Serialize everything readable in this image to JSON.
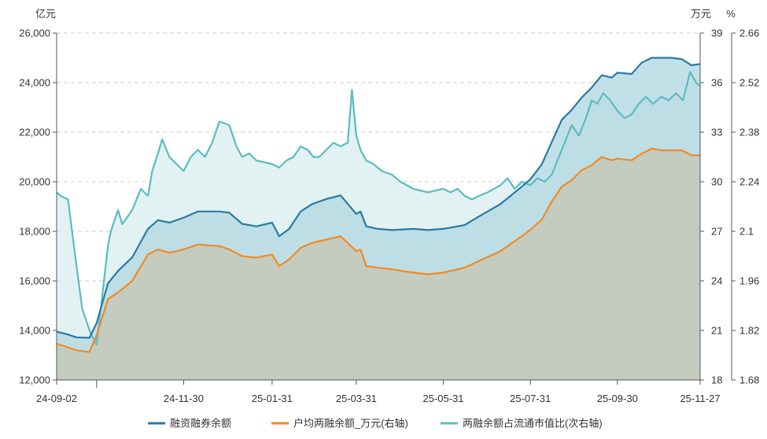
{
  "chart_data": {
    "type": "area",
    "title": "",
    "units": {
      "left": "亿元",
      "right1": "万元",
      "right2": "%"
    },
    "axes": {
      "left": {
        "min": 12000,
        "max": 26000,
        "ticks": [
          "12,000",
          "14,000",
          "16,000",
          "18,000",
          "20,000",
          "22,000",
          "24,000",
          "26,000"
        ]
      },
      "right1": {
        "min": 18,
        "max": 39,
        "ticks": [
          "18",
          "21",
          "24",
          "27",
          "30",
          "33",
          "36",
          "39"
        ]
      },
      "right2": {
        "min": 1.68,
        "max": 2.66,
        "ticks": [
          "1.68",
          "1.82",
          "1.96",
          "2.1",
          "2.24",
          "2.38",
          "2.52",
          "2.66"
        ]
      }
    },
    "x_range": [
      "2024-09-02",
      "2025-11-27"
    ],
    "x_ticks": [
      "24-09-02",
      "24-11-30",
      "25-01-31",
      "25-03-31",
      "25-05-31",
      "25-07-31",
      "25-09-30",
      "25-11-27"
    ],
    "x_tick_dates": [
      "2024-09-02",
      "2024-11-30",
      "2025-01-31",
      "2025-03-31",
      "2025-05-31",
      "2025-07-31",
      "2025-09-30",
      "2025-11-27"
    ],
    "minor_tick_dates": [
      "2024-09-30"
    ],
    "grid": true,
    "legend_position": "bottom",
    "series": [
      {
        "name": "融资融券余额",
        "axis": "left",
        "color": "#2a7aa6",
        "fill": "#b7dae3",
        "points": [
          [
            "2024-09-02",
            13950
          ],
          [
            "2024-09-09",
            13850
          ],
          [
            "2024-09-16",
            13720
          ],
          [
            "2024-09-25",
            13700
          ],
          [
            "2024-09-30",
            14300
          ],
          [
            "2024-10-08",
            15900
          ],
          [
            "2024-10-15",
            16400
          ],
          [
            "2024-10-25",
            16950
          ],
          [
            "2024-11-05",
            18100
          ],
          [
            "2024-11-12",
            18450
          ],
          [
            "2024-11-20",
            18350
          ],
          [
            "2024-11-30",
            18550
          ],
          [
            "2024-12-10",
            18800
          ],
          [
            "2024-12-25",
            18800
          ],
          [
            "2025-01-01",
            18750
          ],
          [
            "2025-01-10",
            18300
          ],
          [
            "2025-01-20",
            18200
          ],
          [
            "2025-01-31",
            18350
          ],
          [
            "2025-02-05",
            17800
          ],
          [
            "2025-02-12",
            18100
          ],
          [
            "2025-02-20",
            18800
          ],
          [
            "2025-02-28",
            19100
          ],
          [
            "2025-03-10",
            19300
          ],
          [
            "2025-03-20",
            19450
          ],
          [
            "2025-03-31",
            18700
          ],
          [
            "2025-04-03",
            18800
          ],
          [
            "2025-04-07",
            18200
          ],
          [
            "2025-04-15",
            18100
          ],
          [
            "2025-04-25",
            18050
          ],
          [
            "2025-05-10",
            18100
          ],
          [
            "2025-05-20",
            18050
          ],
          [
            "2025-05-31",
            18100
          ],
          [
            "2025-06-15",
            18250
          ],
          [
            "2025-06-25",
            18600
          ],
          [
            "2025-07-10",
            19100
          ],
          [
            "2025-07-25",
            19800
          ],
          [
            "2025-07-31",
            20100
          ],
          [
            "2025-08-08",
            20700
          ],
          [
            "2025-08-15",
            21600
          ],
          [
            "2025-08-22",
            22500
          ],
          [
            "2025-08-29",
            22900
          ],
          [
            "2025-09-05",
            23400
          ],
          [
            "2025-09-12",
            23800
          ],
          [
            "2025-09-19",
            24300
          ],
          [
            "2025-09-26",
            24200
          ],
          [
            "2025-09-30",
            24400
          ],
          [
            "2025-10-10",
            24350
          ],
          [
            "2025-10-17",
            24800
          ],
          [
            "2025-10-24",
            25000
          ],
          [
            "2025-10-31",
            25000
          ],
          [
            "2025-11-07",
            25000
          ],
          [
            "2025-11-14",
            24950
          ],
          [
            "2025-11-21",
            24700
          ],
          [
            "2025-11-27",
            24750
          ]
        ]
      },
      {
        "name": "户均两融余额_万元(右轴)",
        "axis": "right1",
        "color": "#f08a25",
        "fill": "#c5c9b9",
        "points": [
          [
            "2024-09-02",
            20.2
          ],
          [
            "2024-09-09",
            20.0
          ],
          [
            "2024-09-16",
            19.8
          ],
          [
            "2024-09-25",
            19.7
          ],
          [
            "2024-09-30",
            20.7
          ],
          [
            "2024-10-08",
            22.9
          ],
          [
            "2024-10-15",
            23.3
          ],
          [
            "2024-10-25",
            24.0
          ],
          [
            "2024-11-05",
            25.6
          ],
          [
            "2024-11-12",
            25.9
          ],
          [
            "2024-11-20",
            25.7
          ],
          [
            "2024-11-30",
            25.9
          ],
          [
            "2024-12-10",
            26.2
          ],
          [
            "2024-12-25",
            26.1
          ],
          [
            "2025-01-01",
            25.9
          ],
          [
            "2025-01-10",
            25.5
          ],
          [
            "2025-01-20",
            25.4
          ],
          [
            "2025-01-31",
            25.6
          ],
          [
            "2025-02-05",
            24.9
          ],
          [
            "2025-02-12",
            25.3
          ],
          [
            "2025-02-20",
            26.0
          ],
          [
            "2025-02-28",
            26.3
          ],
          [
            "2025-03-10",
            26.5
          ],
          [
            "2025-03-20",
            26.7
          ],
          [
            "2025-03-31",
            25.8
          ],
          [
            "2025-04-03",
            25.9
          ],
          [
            "2025-04-07",
            24.9
          ],
          [
            "2025-04-15",
            24.8
          ],
          [
            "2025-04-25",
            24.7
          ],
          [
            "2025-05-10",
            24.5
          ],
          [
            "2025-05-20",
            24.4
          ],
          [
            "2025-05-31",
            24.5
          ],
          [
            "2025-06-15",
            24.8
          ],
          [
            "2025-06-25",
            25.2
          ],
          [
            "2025-07-10",
            25.8
          ],
          [
            "2025-07-25",
            26.7
          ],
          [
            "2025-07-31",
            27.1
          ],
          [
            "2025-08-08",
            27.7
          ],
          [
            "2025-08-15",
            28.8
          ],
          [
            "2025-08-22",
            29.7
          ],
          [
            "2025-08-29",
            30.1
          ],
          [
            "2025-09-05",
            30.7
          ],
          [
            "2025-09-12",
            31.0
          ],
          [
            "2025-09-19",
            31.5
          ],
          [
            "2025-09-26",
            31.3
          ],
          [
            "2025-09-30",
            31.4
          ],
          [
            "2025-10-10",
            31.3
          ],
          [
            "2025-10-17",
            31.7
          ],
          [
            "2025-10-24",
            32.0
          ],
          [
            "2025-10-31",
            31.9
          ],
          [
            "2025-11-07",
            31.9
          ],
          [
            "2025-11-14",
            31.9
          ],
          [
            "2025-11-21",
            31.6
          ],
          [
            "2025-11-27",
            31.6
          ]
        ]
      },
      {
        "name": "两融余额占流通市值比(次右轴)",
        "axis": "right2",
        "color": "#5bbcc1",
        "fill": "#ddf0f0",
        "points": [
          [
            "2024-09-02",
            2.21
          ],
          [
            "2024-09-05",
            2.2
          ],
          [
            "2024-09-10",
            2.19
          ],
          [
            "2024-09-15",
            2.03
          ],
          [
            "2024-09-20",
            1.88
          ],
          [
            "2024-09-26",
            1.81
          ],
          [
            "2024-09-30",
            1.78
          ],
          [
            "2024-10-08",
            2.06
          ],
          [
            "2024-10-10",
            2.1
          ],
          [
            "2024-10-15",
            2.16
          ],
          [
            "2024-10-18",
            2.12
          ],
          [
            "2024-10-25",
            2.16
          ],
          [
            "2024-10-31",
            2.22
          ],
          [
            "2024-11-05",
            2.2
          ],
          [
            "2024-11-08",
            2.27
          ],
          [
            "2024-11-12",
            2.32
          ],
          [
            "2024-11-15",
            2.36
          ],
          [
            "2024-11-20",
            2.31
          ],
          [
            "2024-11-30",
            2.27
          ],
          [
            "2024-12-05",
            2.31
          ],
          [
            "2024-12-10",
            2.33
          ],
          [
            "2024-12-15",
            2.31
          ],
          [
            "2024-12-20",
            2.35
          ],
          [
            "2024-12-25",
            2.41
          ],
          [
            "2025-01-01",
            2.4
          ],
          [
            "2025-01-06",
            2.34
          ],
          [
            "2025-01-10",
            2.31
          ],
          [
            "2025-01-15",
            2.32
          ],
          [
            "2025-01-20",
            2.3
          ],
          [
            "2025-01-31",
            2.29
          ],
          [
            "2025-02-05",
            2.28
          ],
          [
            "2025-02-10",
            2.3
          ],
          [
            "2025-02-15",
            2.31
          ],
          [
            "2025-02-20",
            2.34
          ],
          [
            "2025-02-25",
            2.33
          ],
          [
            "2025-03-01",
            2.31
          ],
          [
            "2025-03-05",
            2.31
          ],
          [
            "2025-03-10",
            2.33
          ],
          [
            "2025-03-15",
            2.35
          ],
          [
            "2025-03-20",
            2.34
          ],
          [
            "2025-03-25",
            2.35
          ],
          [
            "2025-03-28",
            2.5
          ],
          [
            "2025-03-31",
            2.37
          ],
          [
            "2025-04-03",
            2.33
          ],
          [
            "2025-04-07",
            2.3
          ],
          [
            "2025-04-12",
            2.29
          ],
          [
            "2025-04-18",
            2.27
          ],
          [
            "2025-04-25",
            2.26
          ],
          [
            "2025-05-01",
            2.24
          ],
          [
            "2025-05-10",
            2.22
          ],
          [
            "2025-05-20",
            2.21
          ],
          [
            "2025-05-31",
            2.22
          ],
          [
            "2025-06-05",
            2.21
          ],
          [
            "2025-06-10",
            2.22
          ],
          [
            "2025-06-15",
            2.2
          ],
          [
            "2025-06-20",
            2.19
          ],
          [
            "2025-06-25",
            2.2
          ],
          [
            "2025-07-01",
            2.21
          ],
          [
            "2025-07-10",
            2.23
          ],
          [
            "2025-07-15",
            2.25
          ],
          [
            "2025-07-20",
            2.22
          ],
          [
            "2025-07-25",
            2.24
          ],
          [
            "2025-07-31",
            2.23
          ],
          [
            "2025-08-05",
            2.25
          ],
          [
            "2025-08-10",
            2.24
          ],
          [
            "2025-08-15",
            2.26
          ],
          [
            "2025-08-20",
            2.31
          ],
          [
            "2025-08-25",
            2.36
          ],
          [
            "2025-08-29",
            2.4
          ],
          [
            "2025-09-03",
            2.37
          ],
          [
            "2025-09-08",
            2.42
          ],
          [
            "2025-09-12",
            2.47
          ],
          [
            "2025-09-16",
            2.46
          ],
          [
            "2025-09-20",
            2.49
          ],
          [
            "2025-09-25",
            2.47
          ],
          [
            "2025-09-30",
            2.44
          ],
          [
            "2025-10-05",
            2.42
          ],
          [
            "2025-10-10",
            2.43
          ],
          [
            "2025-10-15",
            2.46
          ],
          [
            "2025-10-20",
            2.48
          ],
          [
            "2025-10-25",
            2.46
          ],
          [
            "2025-10-31",
            2.48
          ],
          [
            "2025-11-05",
            2.47
          ],
          [
            "2025-11-10",
            2.49
          ],
          [
            "2025-11-15",
            2.47
          ],
          [
            "2025-11-20",
            2.55
          ],
          [
            "2025-11-24",
            2.52
          ],
          [
            "2025-11-27",
            2.51
          ]
        ]
      }
    ]
  }
}
